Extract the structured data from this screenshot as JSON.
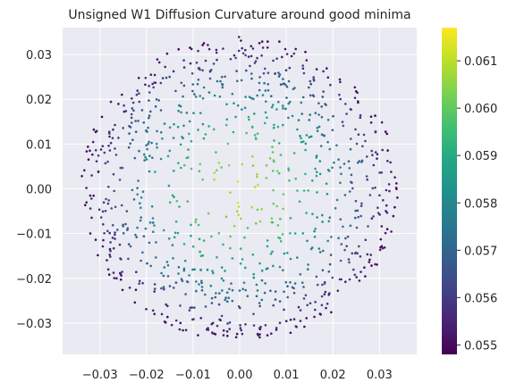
{
  "chart_data": {
    "type": "scatter",
    "title": "Unsigned W1 Diffusion Curvature around good minima",
    "xlabel": "",
    "ylabel": "",
    "xlim": [
      -0.038,
      0.038
    ],
    "ylim": [
      -0.037,
      0.036
    ],
    "x_ticks": [
      -0.03,
      -0.02,
      -0.01,
      0.0,
      0.01,
      0.02,
      0.03
    ],
    "x_tick_labels": [
      "−0.03",
      "−0.02",
      "−0.01",
      "0.00",
      "0.01",
      "0.02",
      "0.03"
    ],
    "y_ticks": [
      0.03,
      0.02,
      0.01,
      0.0,
      -0.01,
      -0.02,
      -0.03
    ],
    "y_tick_labels": [
      "0.03",
      "0.02",
      "0.01",
      "0.00",
      "−0.01",
      "−0.02",
      "−0.03"
    ],
    "grid": true,
    "point_cloud": {
      "shape": "disk",
      "center": [
        0.0,
        0.0
      ],
      "radius": 0.034,
      "count": 1000,
      "color_at_center": 0.0612,
      "color_at_edge": 0.0549
    },
    "colorbar": {
      "colormap": "viridis",
      "range": [
        0.0548,
        0.0617
      ],
      "ticks": [
        0.055,
        0.056,
        0.057,
        0.058,
        0.059,
        0.06,
        0.061
      ],
      "tick_labels": [
        "0.055",
        "0.056",
        "0.057",
        "0.058",
        "0.059",
        "0.060",
        "0.061"
      ]
    },
    "colors": {
      "plot_background": "#eaeaf2",
      "grid": "#ffffff",
      "text": "#262626"
    }
  }
}
